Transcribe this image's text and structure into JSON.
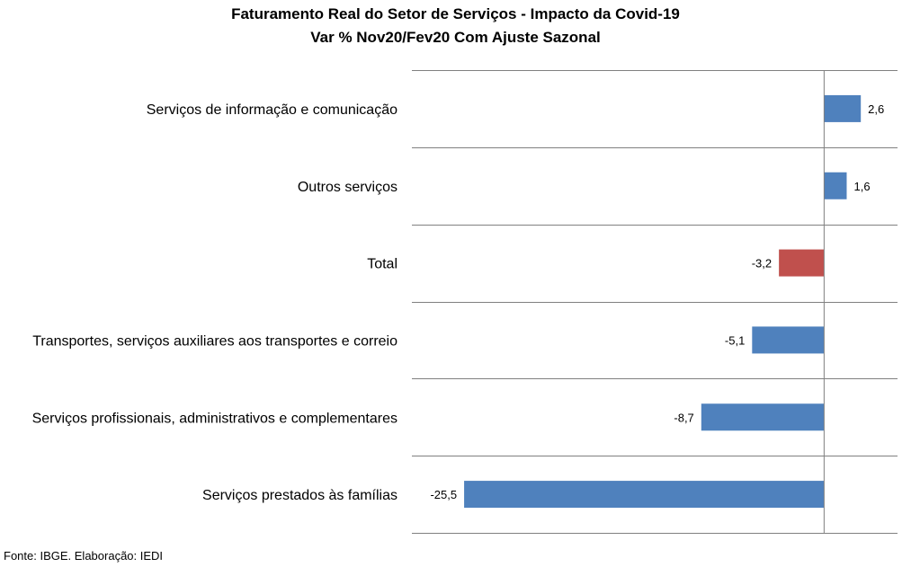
{
  "chart_data": {
    "type": "bar",
    "orientation": "horizontal",
    "title": "Faturamento  Real do Setor de Serviços - Impacto da Covid-19",
    "subtitle": "Var % Nov20/Fev20 Com Ajuste Sazonal",
    "categories": [
      "Serviços de informação e comunicação",
      "Outros serviços",
      "Total",
      "Transportes, serviços auxiliares aos transportes e correio",
      "Serviços profissionais, administrativos e complementares",
      "Serviços prestados às famílias"
    ],
    "values": [
      2.6,
      1.6,
      -3.2,
      -5.1,
      -8.7,
      -25.5
    ],
    "value_labels": [
      "2,6",
      "1,6",
      "-3,2",
      "-5,1",
      "-8,7",
      "-25,5"
    ],
    "highlight_category": "Total",
    "xlim": [
      -29.2,
      5.2
    ],
    "grid": true,
    "legend": "none",
    "colors": {
      "bar": "#4f81bd",
      "highlight": "#c0504d",
      "grid": "#808080",
      "axis": "#808080"
    }
  },
  "source": "Fonte: IBGE. Elaboração: IEDI"
}
